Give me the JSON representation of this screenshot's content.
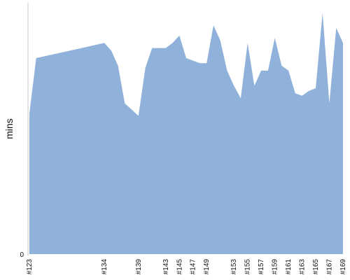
{
  "chart_data": {
    "type": "area",
    "title": "",
    "xlabel": "",
    "ylabel": "mins",
    "ylim": [
      0,
      100
    ],
    "grid": false,
    "legend": "none",
    "x_tick_labels": [
      "#123",
      "#134",
      "#139",
      "#143",
      "#145",
      "#147",
      "#149",
      "#153",
      "#155",
      "#157",
      "#159",
      "#161",
      "#163",
      "#165",
      "#167",
      "#169"
    ],
    "y_tick_labels": [
      "0"
    ],
    "x": [
      "#123",
      "#124",
      "#134",
      "#135",
      "#136",
      "#137",
      "#139",
      "#140",
      "#141",
      "#143",
      "#144",
      "#145",
      "#146",
      "#147",
      "#148",
      "#149",
      "#150",
      "#151",
      "#152",
      "#153",
      "#154",
      "#155",
      "#156",
      "#157",
      "#158",
      "#159",
      "#160",
      "#161",
      "#162",
      "#163",
      "#164",
      "#165",
      "#166",
      "#167",
      "#168",
      "#169"
    ],
    "series": [
      {
        "values": [
          56,
          78,
          84,
          81,
          75,
          60,
          55,
          74,
          82,
          82,
          84,
          87,
          78,
          77,
          76,
          76,
          91,
          85,
          73,
          67,
          62,
          84,
          67,
          73,
          73,
          86,
          75,
          73,
          64,
          63,
          65,
          66,
          96,
          60,
          90,
          84
        ]
      }
    ],
    "colors": {
      "area": "#90b2da",
      "axis": "#c8c8c8",
      "text": "#111111"
    }
  }
}
